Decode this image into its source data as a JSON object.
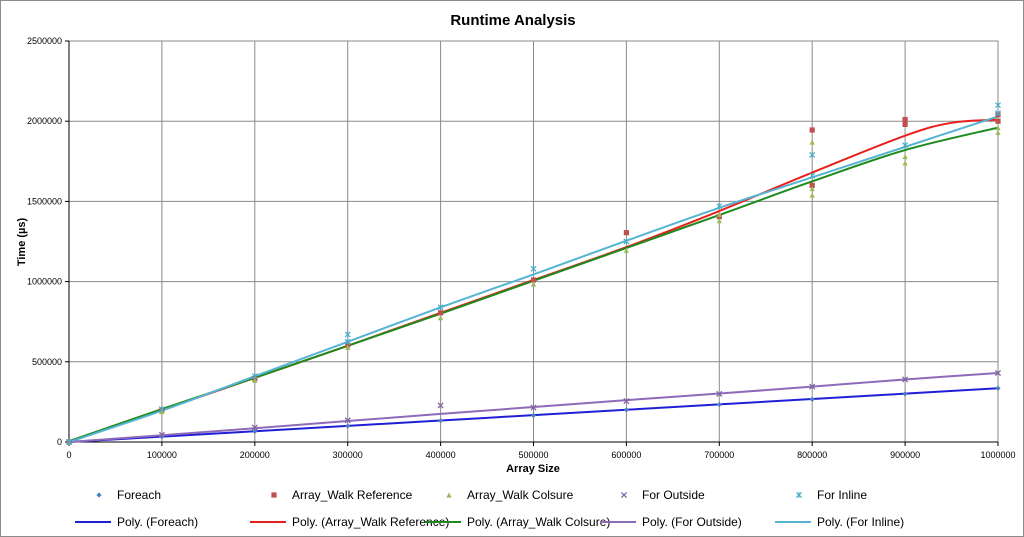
{
  "chart_data": {
    "type": "scatter",
    "title": "Runtime Analysis",
    "xlabel": "Array Size",
    "ylabel": "Time (µs)",
    "xlim": [
      0,
      1000000
    ],
    "ylim": [
      0,
      2500000
    ],
    "x_ticks": [
      "0",
      "100000",
      "200000",
      "300000",
      "400000",
      "500000",
      "600000",
      "700000",
      "800000",
      "900000",
      "1000000"
    ],
    "y_ticks": [
      "0",
      "500000",
      "1000000",
      "1500000",
      "2000000",
      "2500000"
    ],
    "grid": true,
    "legend_position": "bottom",
    "series": [
      {
        "name": "Foreach",
        "marker": "diamond",
        "color": "#4a7ebb",
        "x": [
          0,
          100000,
          200000,
          300000,
          400000,
          500000,
          600000,
          700000,
          800000,
          900000,
          1000000
        ],
        "y": [
          0,
          33000,
          66000,
          100000,
          133000,
          166000,
          200000,
          233000,
          266000,
          300000,
          335000
        ]
      },
      {
        "name": "Array_Walk Reference",
        "marker": "square",
        "color": "#c0504d",
        "x": [
          0,
          100000,
          200000,
          300000,
          400000,
          500000,
          600000,
          700000,
          800000,
          800000,
          900000,
          900000,
          1000000,
          1000000
        ],
        "y": [
          0,
          200000,
          395000,
          605000,
          805000,
          1010000,
          1305000,
          1405000,
          1945000,
          1600000,
          2010000,
          1980000,
          2040000,
          2000000
        ]
      },
      {
        "name": "Array_Walk Colsure",
        "marker": "triangle",
        "color": "#9bbb59",
        "x": [
          0,
          100000,
          200000,
          300000,
          400000,
          500000,
          600000,
          700000,
          700000,
          800000,
          800000,
          800000,
          900000,
          900000,
          1000000,
          1000000
        ],
        "y": [
          0,
          190000,
          385000,
          590000,
          775000,
          985000,
          1195000,
          1380000,
          1420000,
          1540000,
          1580000,
          1870000,
          1740000,
          1780000,
          1930000,
          1960000
        ]
      },
      {
        "name": "For Outside",
        "marker": "x",
        "color": "#8064a2",
        "x": [
          0,
          100000,
          200000,
          300000,
          400000,
          500000,
          600000,
          700000,
          800000,
          900000,
          1000000
        ],
        "y": [
          0,
          45000,
          90000,
          135000,
          228000,
          215000,
          255000,
          300000,
          345000,
          390000,
          430000
        ]
      },
      {
        "name": "For Inline",
        "marker": "star",
        "color": "#4bacc6",
        "x": [
          0,
          100000,
          200000,
          300000,
          300000,
          400000,
          500000,
          600000,
          700000,
          800000,
          800000,
          900000,
          1000000,
          1000000
        ],
        "y": [
          0,
          205000,
          410000,
          625000,
          670000,
          840000,
          1080000,
          1250000,
          1470000,
          1660000,
          1790000,
          1850000,
          2100000,
          2050000
        ]
      }
    ],
    "trendlines": [
      {
        "name": "Poly. (Foreach)",
        "color": "#1f1fd6",
        "x": [
          0,
          100000,
          200000,
          300000,
          400000,
          500000,
          600000,
          700000,
          800000,
          900000,
          1000000
        ],
        "y": [
          0,
          33500,
          67000,
          100500,
          134000,
          167500,
          201000,
          234500,
          268000,
          301500,
          335000
        ]
      },
      {
        "name": "Poly. (Array_Walk Reference)",
        "color": "#e8201d",
        "x": [
          0,
          100000,
          200000,
          300000,
          400000,
          500000,
          600000,
          700000,
          800000,
          900000,
          950000,
          1000000
        ],
        "y": [
          0,
          200000,
          400000,
          600000,
          805000,
          1010000,
          1215000,
          1440000,
          1680000,
          1910000,
          1990000,
          2010000
        ]
      },
      {
        "name": "Poly. (Array_Walk Colsure)",
        "color": "#1e8a1e",
        "x": [
          0,
          100000,
          200000,
          300000,
          400000,
          500000,
          600000,
          700000,
          800000,
          900000,
          1000000
        ],
        "y": [
          5000,
          205000,
          400000,
          600000,
          800000,
          1005000,
          1210000,
          1415000,
          1625000,
          1820000,
          1960000
        ]
      },
      {
        "name": "Poly. (For Outside)",
        "color": "#8e6bb8",
        "x": [
          0,
          100000,
          200000,
          300000,
          400000,
          500000,
          600000,
          700000,
          800000,
          900000,
          1000000
        ],
        "y": [
          0,
          42000,
          86000,
          131000,
          175000,
          218000,
          261000,
          302000,
          345000,
          390000,
          430000
        ]
      },
      {
        "name": "Poly. (For Inline)",
        "color": "#56b4d3",
        "x": [
          0,
          100000,
          200000,
          300000,
          400000,
          500000,
          600000,
          700000,
          800000,
          900000,
          1000000
        ],
        "y": [
          0,
          195000,
          410000,
          625000,
          840000,
          1045000,
          1255000,
          1460000,
          1650000,
          1840000,
          2030000
        ]
      }
    ]
  }
}
